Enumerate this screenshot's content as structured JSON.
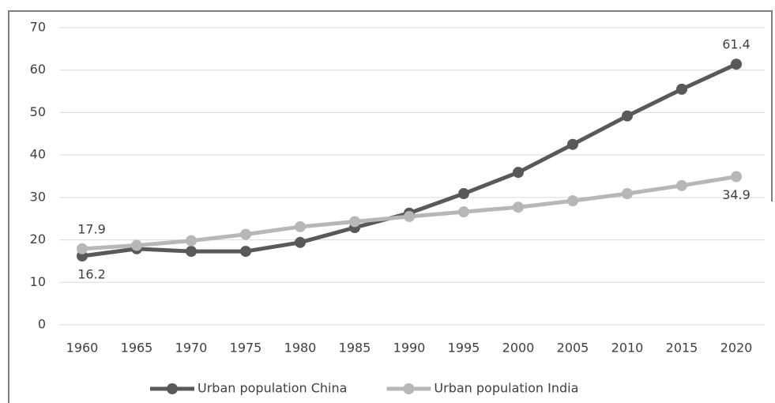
{
  "chart_data": {
    "type": "line",
    "categories": [
      "1960",
      "1965",
      "1970",
      "1975",
      "1980",
      "1985",
      "1990",
      "1995",
      "2000",
      "2005",
      "2010",
      "2015",
      "2020"
    ],
    "series": [
      {
        "name": "Urban population China",
        "color": "#595959",
        "values": [
          16.2,
          17.9,
          17.3,
          17.3,
          19.4,
          22.9,
          26.3,
          30.9,
          35.9,
          42.5,
          49.2,
          55.5,
          61.4
        ],
        "value_labels": [
          "16.2",
          null,
          null,
          null,
          null,
          null,
          null,
          null,
          null,
          null,
          null,
          null,
          "61.4"
        ]
      },
      {
        "name": "Urban population India",
        "color": "#b7b7b7",
        "values": [
          17.9,
          18.7,
          19.8,
          21.3,
          23.1,
          24.3,
          25.5,
          26.6,
          27.7,
          29.2,
          30.9,
          32.8,
          34.9
        ],
        "value_labels": [
          "17.9",
          null,
          null,
          null,
          null,
          null,
          null,
          null,
          null,
          null,
          null,
          null,
          "34.9"
        ]
      }
    ],
    "ylim": [
      0,
      70
    ],
    "yticks": [
      0,
      10,
      20,
      30,
      40,
      50,
      60,
      70
    ],
    "grid": true,
    "legend": "bottom"
  }
}
